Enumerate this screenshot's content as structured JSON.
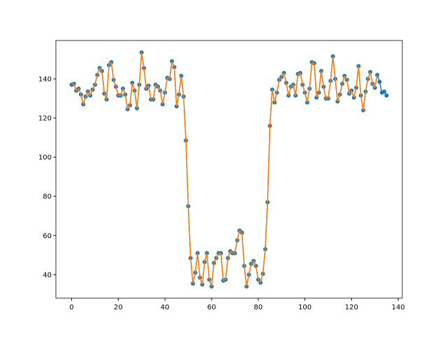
{
  "chart_data": {
    "type": "line",
    "x": [
      0,
      1,
      2,
      3,
      4,
      5,
      6,
      7,
      8,
      9,
      10,
      11,
      12,
      13,
      14,
      15,
      16,
      17,
      18,
      19,
      20,
      21,
      22,
      23,
      24,
      25,
      26,
      27,
      28,
      29,
      30,
      31,
      32,
      33,
      34,
      35,
      36,
      37,
      38,
      39,
      40,
      41,
      42,
      43,
      44,
      45,
      46,
      47,
      48,
      49,
      50,
      51,
      52,
      53,
      54,
      55,
      56,
      57,
      58,
      59,
      60,
      61,
      62,
      63,
      64,
      65,
      66,
      67,
      68,
      69,
      70,
      71,
      72,
      73,
      74,
      75,
      76,
      77,
      78,
      79,
      80,
      81,
      82,
      83,
      84,
      85,
      86,
      87,
      88,
      89,
      90,
      91,
      92,
      93,
      94,
      95,
      96,
      97,
      98,
      99,
      100,
      101,
      102,
      103,
      104,
      105,
      106,
      107,
      108,
      109,
      110,
      111,
      112,
      113,
      114,
      115,
      116,
      117,
      118,
      119,
      120,
      121,
      122,
      123,
      124,
      125,
      126,
      127,
      128,
      129,
      130,
      131,
      132,
      133,
      134,
      135
    ],
    "series": [
      {
        "color": "#1f77b4",
        "marker": true,
        "values": [
          137,
          137.5,
          134,
          135,
          132,
          127,
          131,
          133.5,
          131.5,
          134.5,
          137,
          142,
          145.5,
          144,
          132.5,
          129.5,
          147,
          148.5,
          139.5,
          136,
          131.5,
          131.5,
          135,
          132,
          124.5,
          126.5,
          138,
          134,
          125,
          137,
          153.5,
          145.5,
          135,
          136.5,
          129.5,
          129.5,
          137,
          136,
          134,
          127,
          133,
          140.5,
          140,
          149,
          146,
          126,
          132,
          141.5,
          131,
          108.5,
          75,
          48.5,
          35.5,
          41,
          51,
          38.5,
          35,
          46.5,
          51,
          37.5,
          34,
          46,
          48.5,
          51,
          51,
          37,
          37.5,
          48.5,
          52,
          51,
          51,
          57.5,
          62.5,
          61.5,
          44.5,
          34,
          40,
          45.5,
          47,
          44.5,
          37.5,
          36,
          40.5,
          53,
          77,
          116,
          134.5,
          128,
          133,
          139.5,
          141,
          143,
          138,
          131.5,
          136,
          137,
          131.5,
          142.5,
          143,
          137,
          133,
          128,
          135,
          148.5,
          148,
          130.5,
          133,
          144,
          136,
          130,
          130,
          139,
          151.5,
          140,
          128.5,
          132,
          137.5,
          141.5,
          139.5,
          132.5,
          134,
          130.5,
          135.5,
          146.5,
          131.5,
          124,
          133.5,
          140,
          143.5,
          137.5,
          135.5,
          142,
          138.5,
          133,
          133.5,
          131.5
        ]
      },
      {
        "color": "#ff7f0e",
        "marker": false,
        "values": [
          137,
          137.5,
          134,
          135,
          132,
          127,
          131,
          133.5,
          131.5,
          134.5,
          137,
          142,
          145.5,
          144,
          132.5,
          129.5,
          147,
          148.5,
          139.5,
          136,
          131.5,
          131.5,
          135,
          132,
          124.5,
          126.5,
          138,
          134,
          125,
          137,
          153.5,
          145.5,
          135,
          136.5,
          129.5,
          129.5,
          137,
          136,
          134,
          127,
          133,
          140.5,
          140,
          149,
          146,
          126,
          132,
          141.5,
          131,
          108.5,
          75,
          48.5,
          35.5,
          41,
          51,
          38.5,
          35,
          46.5,
          51,
          37.5,
          34,
          46,
          48.5,
          51,
          51,
          37,
          37.5,
          48.5,
          52,
          51,
          51,
          57.5,
          62.5,
          61.5,
          44.5,
          34,
          40,
          45.5,
          47,
          44.5,
          37.5,
          36,
          40.5,
          53,
          77,
          116,
          134.5,
          128,
          133,
          139.5,
          141,
          143,
          138,
          131.5,
          136,
          137,
          131.5,
          142.5,
          143,
          137,
          133,
          128,
          135,
          148.5,
          148,
          130.5,
          133,
          144,
          136,
          130,
          130,
          139,
          151.5,
          140,
          128.5,
          132,
          137.5,
          141.5,
          139.5,
          132.5,
          134,
          130.5,
          135.5,
          146.5,
          131.5,
          124,
          133.5,
          140,
          143.5,
          137.5,
          135.5,
          142,
          null,
          null,
          null,
          null
        ]
      }
    ],
    "xlim": [
      -6.75,
      141.75
    ],
    "ylim": [
      28,
      159.6
    ],
    "xticks": [
      0,
      20,
      40,
      60,
      80,
      100,
      120,
      140
    ],
    "yticks": [
      40,
      60,
      80,
      100,
      120,
      140
    ]
  }
}
